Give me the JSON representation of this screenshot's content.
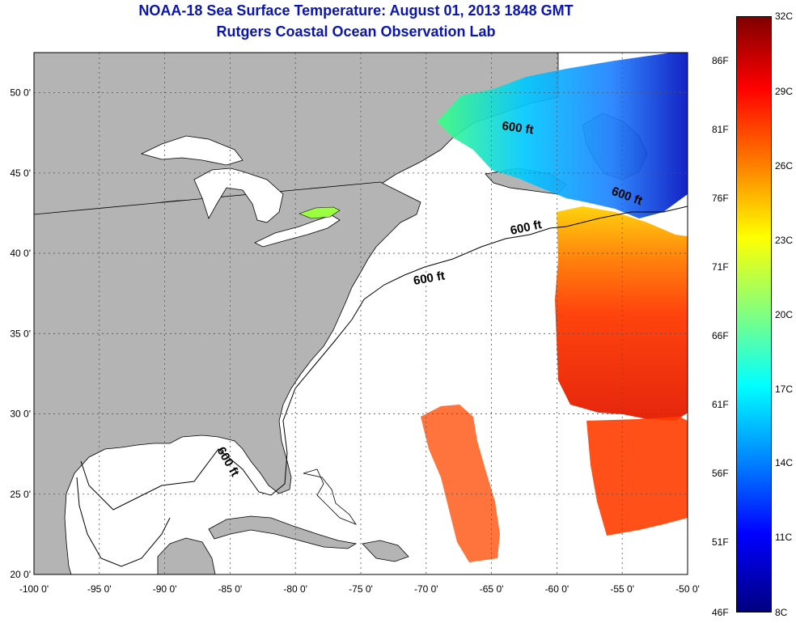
{
  "header": {
    "title": "NOAA-18 Sea Surface Temperature:  August 01, 2013 1848 GMT",
    "subtitle": "Rutgers Coastal Ocean Observation Lab"
  },
  "map": {
    "lon_ticks": [
      "-100 0'",
      "-95 0'",
      "-90 0'",
      "-85 0'",
      "-80 0'",
      "-75 0'",
      "-70 0'",
      "-65 0'",
      "-60 0'",
      "-55 0'",
      "-50 0'"
    ],
    "lon_values": [
      -100,
      -95,
      -90,
      -85,
      -80,
      -75,
      -70,
      -65,
      -60,
      -55,
      -50
    ],
    "lat_ticks": [
      "50 0'",
      "45 0'",
      "40 0'",
      "35 0'",
      "30 0'",
      "25 0'",
      "20 0'"
    ],
    "lat_values": [
      50,
      45,
      40,
      35,
      30,
      25,
      20
    ],
    "lon_range": [
      -100,
      -50
    ],
    "lat_range": [
      20,
      52.5
    ],
    "contour_labels": [
      "600 ft",
      "600 ft",
      "600 ft",
      "600 ft",
      "600 ft"
    ],
    "colors": {
      "land": "#b4b4b4",
      "ocean_nodata": "#ffffff",
      "grid": "#555555"
    }
  },
  "colorbar": {
    "fahrenheit_labels": [
      "86F",
      "81F",
      "76F",
      "71F",
      "66F",
      "61F",
      "56F",
      "51F",
      "46F"
    ],
    "celsius_labels": [
      "32C",
      "29C",
      "26C",
      "23C",
      "20C",
      "17C",
      "14C",
      "11C",
      "8C"
    ],
    "range_c": [
      8,
      32
    ],
    "colormap": "jet"
  }
}
